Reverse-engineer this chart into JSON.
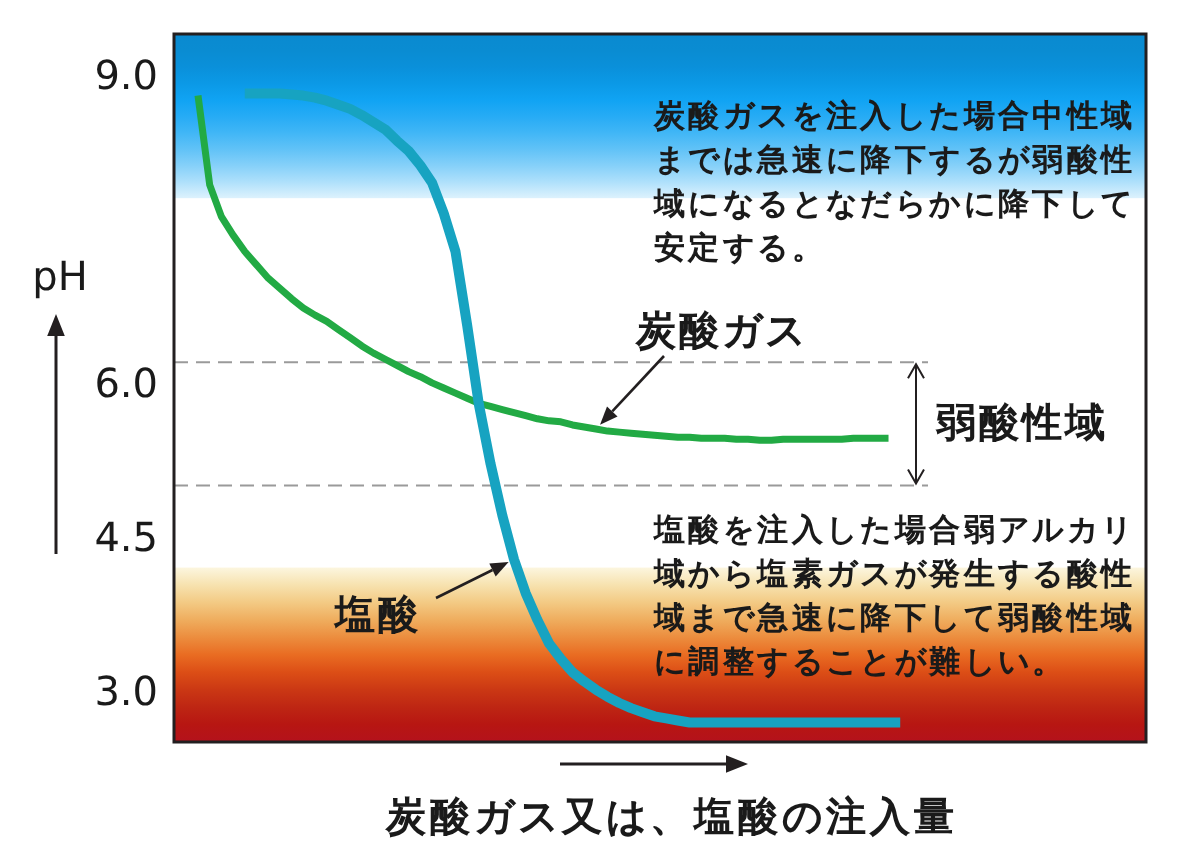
{
  "chart_data": {
    "type": "line",
    "xlabel": "炭酸ガス又は、塩酸の注入量",
    "ylabel": "pH",
    "categories": [
      null,
      null,
      null,
      null,
      null,
      null,
      null,
      null,
      null,
      null,
      null,
      null,
      null,
      null,
      null,
      null,
      null,
      null,
      null,
      null,
      null,
      null,
      null,
      null,
      null,
      null,
      null,
      null,
      null,
      null,
      null,
      null,
      null,
      null,
      null,
      null,
      null,
      null,
      null,
      null,
      null,
      null,
      null,
      null,
      null,
      null,
      null,
      null,
      null,
      null,
      null,
      null,
      null,
      null,
      null,
      null,
      null,
      null,
      null,
      null,
      null,
      null,
      null,
      null,
      null,
      null,
      null,
      null,
      null,
      null,
      null,
      null,
      null,
      null,
      null,
      null,
      null,
      null,
      null,
      null,
      null,
      null
    ],
    "series": [
      {
        "name": "炭酸ガス",
        "color": "#22aa44",
        "values": [
          8.8,
          7.93,
          7.62,
          7.44,
          7.28,
          7.15,
          7.02,
          6.92,
          6.82,
          6.73,
          6.66,
          6.6,
          6.52,
          6.44,
          6.36,
          6.29,
          6.23,
          6.17,
          6.11,
          6.06,
          6.0,
          5.95,
          5.9,
          5.85,
          5.8,
          5.77,
          5.74,
          5.71,
          5.68,
          5.65,
          5.63,
          5.62,
          5.59,
          5.57,
          5.55,
          5.53,
          5.52,
          5.51,
          5.5,
          5.49,
          5.48,
          5.47,
          5.47,
          5.46,
          5.46,
          5.46,
          5.45,
          5.45,
          5.44,
          5.44,
          5.45,
          5.45,
          5.45,
          5.45,
          5.45,
          5.45,
          5.46,
          5.46,
          5.46,
          5.46,
          null,
          null,
          null,
          null,
          null,
          null,
          null,
          null,
          null,
          null,
          null,
          null,
          null,
          null,
          null,
          null,
          null,
          null,
          null,
          null,
          null,
          null
        ]
      },
      {
        "name": "塩酸",
        "color": "#17a3c1",
        "values": [
          null,
          null,
          null,
          null,
          8.82,
          8.82,
          8.82,
          8.82,
          8.81,
          8.8,
          8.78,
          8.75,
          8.71,
          8.67,
          8.61,
          8.54,
          8.47,
          8.36,
          8.26,
          8.12,
          7.95,
          7.65,
          7.28,
          6.56,
          5.79,
          5.21,
          4.71,
          4.28,
          3.95,
          3.69,
          3.46,
          3.31,
          3.18,
          3.09,
          3.01,
          2.94,
          2.88,
          2.83,
          2.79,
          2.75,
          2.73,
          2.71,
          2.69,
          2.69,
          2.69,
          2.69,
          2.69,
          2.69,
          2.69,
          2.69,
          2.69,
          2.69,
          2.69,
          2.69,
          2.69,
          2.69,
          2.69,
          2.69,
          2.69,
          2.69,
          2.69,
          null,
          null,
          null,
          null,
          null,
          null,
          null,
          null,
          null,
          null,
          null,
          null,
          null,
          null,
          null,
          null,
          null,
          null,
          null,
          null,
          null
        ]
      }
    ],
    "ylim": [
      2.5,
      9.4
    ],
    "yticks": [
      {
        "value": 9,
        "label": "9.0"
      },
      {
        "value": 6,
        "label": "6.0"
      },
      {
        "value": 4.5,
        "label": "4.5"
      },
      {
        "value": 3,
        "label": "3.0"
      }
    ],
    "bands": [
      {
        "axis": "y",
        "from": 7.8,
        "to": 9.4,
        "color": "#0a8ad0"
      },
      {
        "axis": "y",
        "from": 2.5,
        "to": 4.2,
        "color": "#b4121c"
      }
    ],
    "ref_lines": [
      {
        "axis": "y",
        "value": 6.2,
        "color": "#9a9a9a",
        "line_style": "dashed"
      },
      {
        "axis": "y",
        "value": 5.0,
        "color": "#9a9a9a",
        "line_style": "dashed"
      }
    ],
    "annotations": [
      "炭酸ガスを注入した場合中性域までは急速に降下するが弱酸性域になるとなだらかに降下して安定する。",
      "塩酸を注入した場合弱アルカリ域から塩素ガスが発生する酸性域まで急速に降下して弱酸性域に調整することが難しい。",
      "弱酸性域"
    ],
    "line_style": "solid",
    "tick_labels": "y"
  }
}
